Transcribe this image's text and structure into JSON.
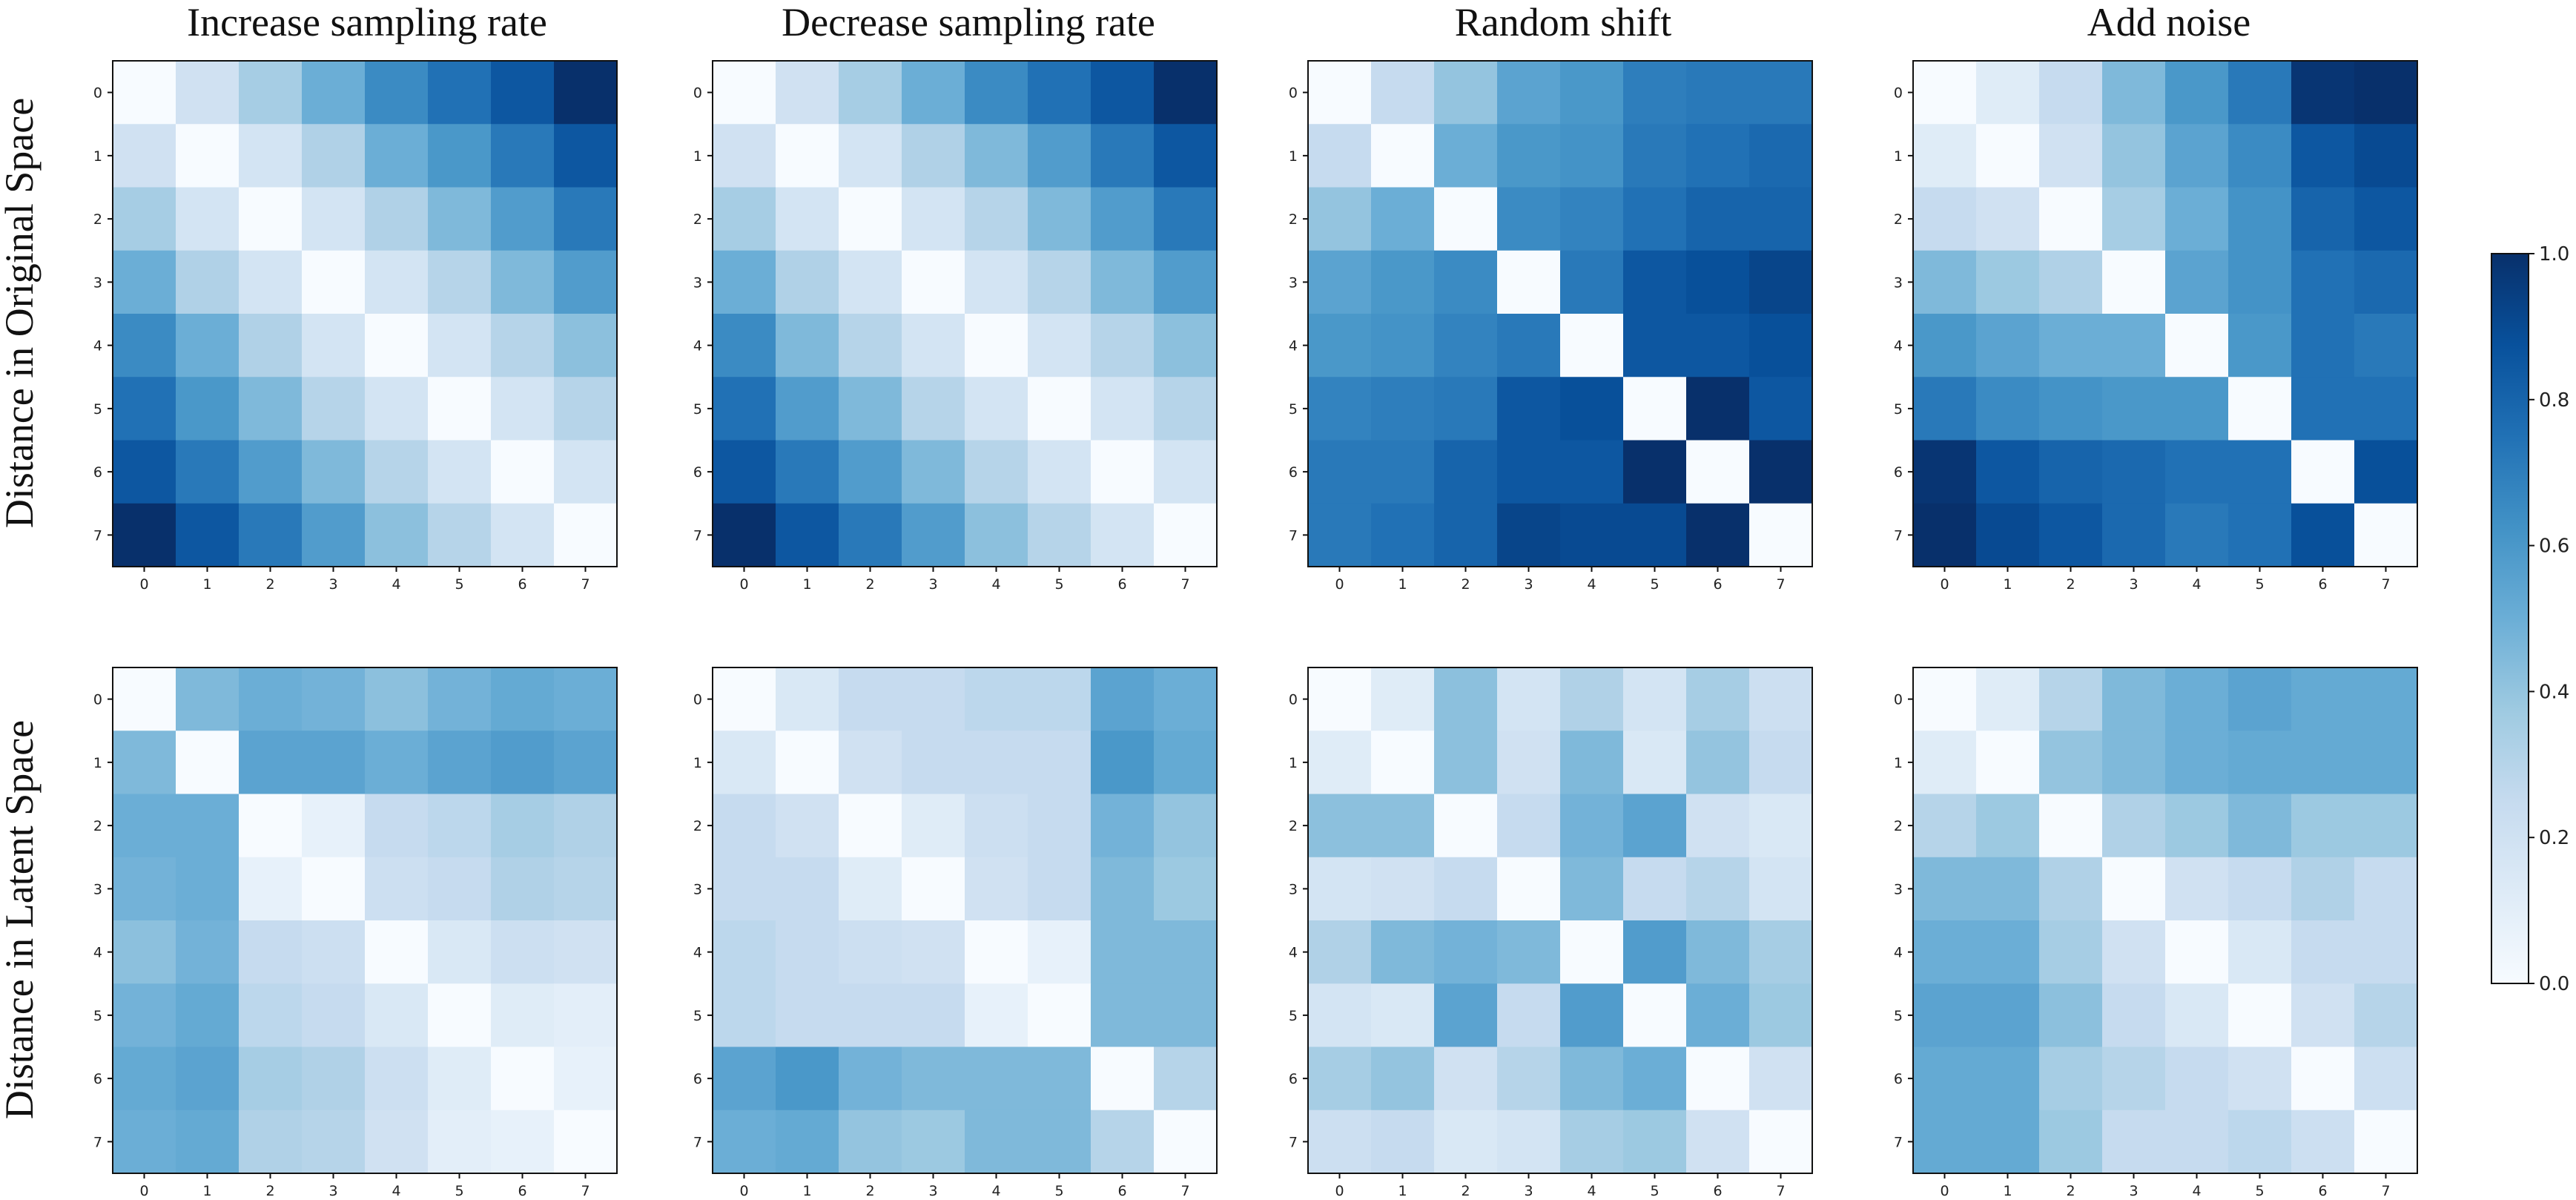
{
  "chart_data": {
    "type": "heatmap",
    "tick_labels": [
      "0",
      "1",
      "2",
      "3",
      "4",
      "5",
      "6",
      "7"
    ],
    "columns": [
      "Increase sampling rate",
      "Decrease sampling rate",
      "Random shift",
      "Add noise"
    ],
    "rows": [
      "Distance in Original Space",
      "Distance in Latent Space"
    ],
    "colormap": "Blues",
    "colorbar": {
      "min": 0.0,
      "max": 1.0,
      "ticks": [
        "0.0",
        "0.2",
        "0.4",
        "0.6",
        "0.8",
        "1.0"
      ]
    },
    "panels": [
      {
        "row": 0,
        "col": 0,
        "matrix": [
          [
            0.0,
            0.2,
            0.35,
            0.5,
            0.65,
            0.75,
            0.85,
            1.0
          ],
          [
            0.2,
            0.0,
            0.18,
            0.32,
            0.5,
            0.6,
            0.72,
            0.85
          ],
          [
            0.35,
            0.18,
            0.0,
            0.18,
            0.32,
            0.45,
            0.58,
            0.72
          ],
          [
            0.5,
            0.32,
            0.18,
            0.0,
            0.18,
            0.3,
            0.45,
            0.58
          ],
          [
            0.65,
            0.5,
            0.32,
            0.18,
            0.0,
            0.18,
            0.3,
            0.42
          ],
          [
            0.75,
            0.6,
            0.45,
            0.3,
            0.18,
            0.0,
            0.18,
            0.3
          ],
          [
            0.85,
            0.72,
            0.58,
            0.45,
            0.3,
            0.18,
            0.0,
            0.18
          ],
          [
            1.0,
            0.85,
            0.72,
            0.58,
            0.42,
            0.3,
            0.18,
            0.0
          ]
        ]
      },
      {
        "row": 0,
        "col": 1,
        "matrix": [
          [
            0.0,
            0.2,
            0.35,
            0.5,
            0.65,
            0.75,
            0.85,
            1.0
          ],
          [
            0.2,
            0.0,
            0.18,
            0.32,
            0.45,
            0.58,
            0.72,
            0.85
          ],
          [
            0.35,
            0.18,
            0.0,
            0.18,
            0.3,
            0.45,
            0.58,
            0.72
          ],
          [
            0.5,
            0.32,
            0.18,
            0.0,
            0.18,
            0.3,
            0.45,
            0.58
          ],
          [
            0.65,
            0.45,
            0.3,
            0.18,
            0.0,
            0.18,
            0.3,
            0.42
          ],
          [
            0.75,
            0.58,
            0.45,
            0.3,
            0.18,
            0.0,
            0.18,
            0.3
          ],
          [
            0.85,
            0.72,
            0.58,
            0.45,
            0.3,
            0.18,
            0.0,
            0.18
          ],
          [
            1.0,
            0.85,
            0.72,
            0.58,
            0.42,
            0.3,
            0.18,
            0.0
          ]
        ]
      },
      {
        "row": 0,
        "col": 2,
        "matrix": [
          [
            0.0,
            0.25,
            0.4,
            0.55,
            0.6,
            0.7,
            0.72,
            0.72
          ],
          [
            0.25,
            0.0,
            0.5,
            0.6,
            0.62,
            0.72,
            0.75,
            0.78
          ],
          [
            0.4,
            0.5,
            0.0,
            0.65,
            0.68,
            0.75,
            0.8,
            0.8
          ],
          [
            0.55,
            0.6,
            0.65,
            0.0,
            0.72,
            0.85,
            0.88,
            0.92
          ],
          [
            0.6,
            0.62,
            0.68,
            0.72,
            0.0,
            0.85,
            0.85,
            0.88
          ],
          [
            0.68,
            0.7,
            0.72,
            0.85,
            0.88,
            0.0,
            1.0,
            0.85
          ],
          [
            0.72,
            0.72,
            0.8,
            0.85,
            0.85,
            1.0,
            0.0,
            1.0
          ],
          [
            0.72,
            0.75,
            0.8,
            0.92,
            0.9,
            0.9,
            1.0,
            0.0
          ]
        ]
      },
      {
        "row": 0,
        "col": 3,
        "matrix": [
          [
            0.0,
            0.12,
            0.25,
            0.45,
            0.6,
            0.72,
            0.98,
            1.0
          ],
          [
            0.12,
            0.0,
            0.2,
            0.4,
            0.55,
            0.65,
            0.85,
            0.9
          ],
          [
            0.25,
            0.2,
            0.0,
            0.35,
            0.5,
            0.62,
            0.8,
            0.85
          ],
          [
            0.45,
            0.38,
            0.32,
            0.0,
            0.55,
            0.62,
            0.75,
            0.78
          ],
          [
            0.6,
            0.55,
            0.5,
            0.5,
            0.0,
            0.6,
            0.75,
            0.72
          ],
          [
            0.72,
            0.65,
            0.62,
            0.6,
            0.6,
            0.0,
            0.75,
            0.75
          ],
          [
            0.98,
            0.85,
            0.8,
            0.78,
            0.75,
            0.75,
            0.0,
            0.88
          ],
          [
            1.0,
            0.9,
            0.85,
            0.78,
            0.72,
            0.75,
            0.88,
            0.0
          ]
        ]
      },
      {
        "row": 1,
        "col": 0,
        "matrix": [
          [
            0.0,
            0.45,
            0.5,
            0.48,
            0.42,
            0.48,
            0.52,
            0.5
          ],
          [
            0.45,
            0.0,
            0.55,
            0.55,
            0.5,
            0.55,
            0.58,
            0.55
          ],
          [
            0.5,
            0.5,
            0.0,
            0.08,
            0.25,
            0.28,
            0.35,
            0.32
          ],
          [
            0.48,
            0.5,
            0.08,
            0.0,
            0.22,
            0.25,
            0.32,
            0.3
          ],
          [
            0.42,
            0.48,
            0.25,
            0.22,
            0.0,
            0.15,
            0.22,
            0.2
          ],
          [
            0.48,
            0.52,
            0.28,
            0.25,
            0.15,
            0.0,
            0.12,
            0.1
          ],
          [
            0.52,
            0.55,
            0.35,
            0.32,
            0.22,
            0.12,
            0.0,
            0.08
          ],
          [
            0.5,
            0.52,
            0.32,
            0.3,
            0.2,
            0.1,
            0.08,
            0.0
          ]
        ]
      },
      {
        "row": 1,
        "col": 1,
        "matrix": [
          [
            0.0,
            0.15,
            0.25,
            0.25,
            0.28,
            0.28,
            0.55,
            0.5
          ],
          [
            0.15,
            0.0,
            0.2,
            0.25,
            0.25,
            0.25,
            0.6,
            0.52
          ],
          [
            0.25,
            0.2,
            0.0,
            0.12,
            0.22,
            0.25,
            0.48,
            0.4
          ],
          [
            0.25,
            0.25,
            0.12,
            0.0,
            0.2,
            0.25,
            0.45,
            0.38
          ],
          [
            0.28,
            0.25,
            0.22,
            0.2,
            0.0,
            0.08,
            0.45,
            0.45
          ],
          [
            0.28,
            0.25,
            0.25,
            0.25,
            0.08,
            0.0,
            0.45,
            0.45
          ],
          [
            0.55,
            0.6,
            0.48,
            0.45,
            0.45,
            0.45,
            0.0,
            0.3
          ],
          [
            0.5,
            0.52,
            0.4,
            0.38,
            0.45,
            0.45,
            0.3,
            0.0
          ]
        ]
      },
      {
        "row": 1,
        "col": 2,
        "matrix": [
          [
            0.0,
            0.12,
            0.42,
            0.18,
            0.32,
            0.18,
            0.35,
            0.22
          ],
          [
            0.12,
            0.0,
            0.42,
            0.2,
            0.45,
            0.15,
            0.4,
            0.25
          ],
          [
            0.42,
            0.42,
            0.0,
            0.25,
            0.48,
            0.55,
            0.2,
            0.15
          ],
          [
            0.18,
            0.2,
            0.25,
            0.0,
            0.45,
            0.25,
            0.3,
            0.18
          ],
          [
            0.32,
            0.45,
            0.48,
            0.45,
            0.0,
            0.58,
            0.45,
            0.35
          ],
          [
            0.18,
            0.15,
            0.55,
            0.25,
            0.58,
            0.0,
            0.5,
            0.38
          ],
          [
            0.35,
            0.4,
            0.2,
            0.3,
            0.45,
            0.5,
            0.0,
            0.2
          ],
          [
            0.22,
            0.25,
            0.15,
            0.18,
            0.35,
            0.38,
            0.2,
            0.0
          ]
        ]
      },
      {
        "row": 1,
        "col": 3,
        "matrix": [
          [
            0.0,
            0.12,
            0.3,
            0.45,
            0.5,
            0.55,
            0.52,
            0.52
          ],
          [
            0.12,
            0.0,
            0.4,
            0.45,
            0.5,
            0.52,
            0.52,
            0.52
          ],
          [
            0.3,
            0.38,
            0.0,
            0.32,
            0.38,
            0.45,
            0.38,
            0.38
          ],
          [
            0.45,
            0.45,
            0.32,
            0.0,
            0.2,
            0.25,
            0.32,
            0.25
          ],
          [
            0.5,
            0.5,
            0.35,
            0.2,
            0.0,
            0.15,
            0.25,
            0.25
          ],
          [
            0.55,
            0.55,
            0.42,
            0.25,
            0.15,
            0.0,
            0.2,
            0.3
          ],
          [
            0.52,
            0.52,
            0.35,
            0.3,
            0.25,
            0.2,
            0.0,
            0.22
          ],
          [
            0.52,
            0.52,
            0.38,
            0.25,
            0.25,
            0.28,
            0.22,
            0.0
          ]
        ]
      }
    ]
  }
}
